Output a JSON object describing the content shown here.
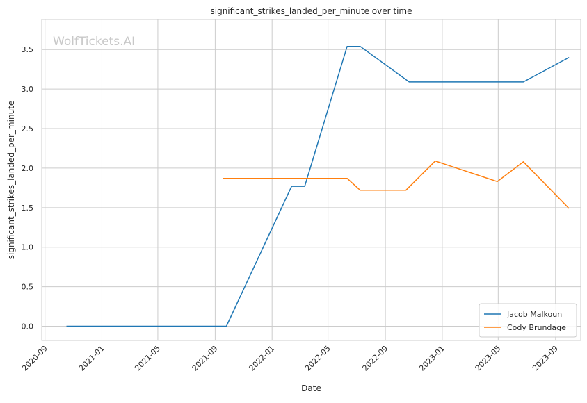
{
  "chart_data": {
    "type": "line",
    "title": "significant_strikes_landed_per_minute over time",
    "xlabel": "Date",
    "ylabel": "significant_strikes_landed_per_minute",
    "watermark": "WolfTickets.AI",
    "x_is_date": true,
    "xlim": [
      "2020-08-25",
      "2023-10-25"
    ],
    "ylim": [
      -0.18,
      3.88
    ],
    "x_ticks": [
      "2020-09",
      "2021-01",
      "2021-05",
      "2021-09",
      "2022-01",
      "2022-05",
      "2022-09",
      "2023-01",
      "2023-05",
      "2023-09"
    ],
    "y_ticks": [
      0.0,
      0.5,
      1.0,
      1.5,
      2.0,
      2.5,
      3.0,
      3.5
    ],
    "y_tick_labels": [
      "0.0",
      "0.5",
      "1.0",
      "1.5",
      "2.0",
      "2.5",
      "3.0",
      "3.5"
    ],
    "grid": true,
    "legend_position": "lower-right",
    "series": [
      {
        "name": "Jacob Malkoun",
        "color": "#1f77b4",
        "points": [
          {
            "x": "2020-10-17",
            "y": 0.0
          },
          {
            "x": "2021-09-25",
            "y": 0.0
          },
          {
            "x": "2022-02-12",
            "y": 1.77
          },
          {
            "x": "2022-03-12",
            "y": 1.77
          },
          {
            "x": "2022-06-11",
            "y": 3.54
          },
          {
            "x": "2022-07-09",
            "y": 3.54
          },
          {
            "x": "2022-10-22",
            "y": 3.09
          },
          {
            "x": "2023-06-24",
            "y": 3.09
          },
          {
            "x": "2023-09-30",
            "y": 3.4
          }
        ]
      },
      {
        "name": "Cody Brundage",
        "color": "#ff7f0e",
        "points": [
          {
            "x": "2021-09-18",
            "y": 1.87
          },
          {
            "x": "2022-06-11",
            "y": 1.87
          },
          {
            "x": "2022-07-09",
            "y": 1.72
          },
          {
            "x": "2022-10-15",
            "y": 1.72
          },
          {
            "x": "2022-12-17",
            "y": 2.09
          },
          {
            "x": "2023-04-29",
            "y": 1.83
          },
          {
            "x": "2023-06-24",
            "y": 2.08
          },
          {
            "x": "2023-09-30",
            "y": 1.49
          }
        ]
      }
    ]
  }
}
